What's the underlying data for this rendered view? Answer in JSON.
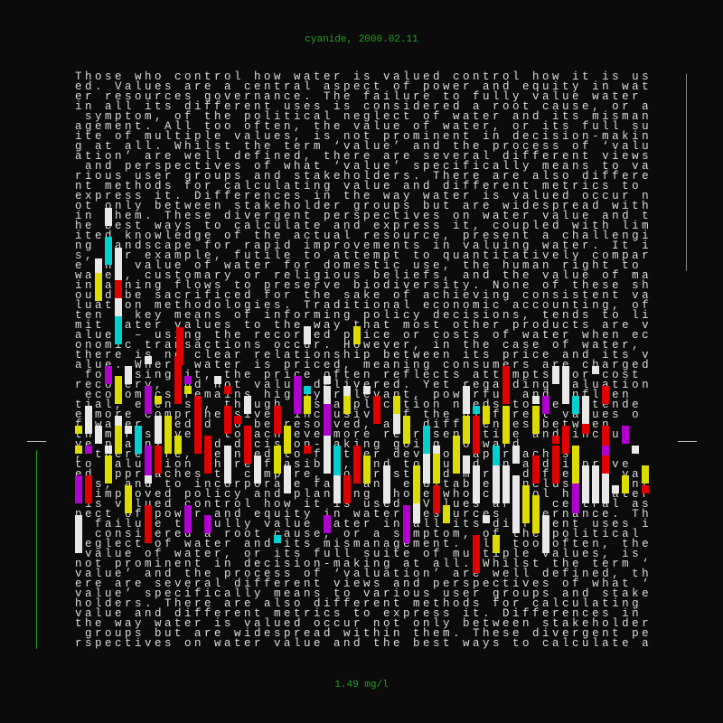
{
  "header": {
    "title": "cyanide, 2000.02.11"
  },
  "footer": {
    "reading": "1.49 mg/l"
  },
  "palette": {
    "text": "#dcdcdc",
    "accent": "#1fa01f",
    "white": "#e8e8e8",
    "yellow": "#dcdc00",
    "red": "#e00000",
    "magenta": "#b000d0",
    "cyan": "#00d0d0"
  },
  "body_lines": [
    "Those who control how water is valued control how it is us",
    "ed. Values are a central aspect of power and equity in wat",
    "er resources governance. The failure to fully value water ",
    "in all its different uses is considered a root cause, or a",
    " symptom, of the political neglect of water and its misman",
    "agement. All too often, the value of water, or its full su",
    "ite of multiple values, is not prominent in decision-makin",
    "g at all. Whilst the term ‘value’ and the process of ‘valu",
    "ation’ are well defined, there are several different views",
    " and perspectives of what ‘value’ specifically means to va",
    "rious user groups and stakeholders. There are also differe",
    "nt methods for calculating value and different metrics to ",
    "express it. Differences in the way water is valued occur n",
    "ot only between stakeholder groups but are widespread with",
    "in them. These divergent perspectives on water value and t",
    "he best ways to calculate and express it, coupled with lim",
    "ited knowledge of the actual resource, present a challengi",
    "ng landscape for rapid improvements in valuing water. It i",
    "s, for example, futile to attempt to quantitatively compar",
    "e the value of water for domestic use, the human right to ",
    "water, customary or religious beliefs, and the value of ma",
    "intaining flows to preserve biodiversity. None of these sh",
    "ould be sacrificed for the sake of achieving consistent va",
    "luation methodologies. Traditional economic accounting, of",
    "ten a key means of informing policy decisions, tends to li",
    "mit water values to the way that most other products are v",
    "alued – using the recorded price or costs of water when ec",
    "onomic transactions occur. However, in the case of water, ",
    "there is no clear relationship between its price and its v",
    "alue. Where water is priced, meaning consumers are charged",
    " for using it, the price often reflects attempts for cost ",
    "recovery, and not value delivered. Yet regarding valuation",
    " economics remains highly relevant, powerful and influen",
    "tial, even so, though its application needs to be extende",
    "e more comprehensive, inclusive of the different values o",
    "f water needed to be resolved, and differences between",
    "them resolved, to achieve more representative and inclus",
    "ve planning and decision-making going forward",
    ", therefore, we need to further develop approaches",
    "to valuation where feasible, and to build on and improve",
    "ed approaches to compare, contrast and merge different val",
    "ues, and to incorporate fair and equitable conclusions int",
    "o improved policy and planning Those who control how water",
    " is valued control how it is used. Values are a central as",
    "pect of power and equity in water resources governance. Th",
    "e failure to fully value water in all its different uses i",
    "s considered a root cause, or a symptom, of the political ",
    "neglect of water and its mismanagement. All too often, the",
    " value of water, or its full suite of multiple values, is ",
    "not prominent in decision-making at all. Whilst the term ‘",
    "value’ and the process of ‘valuation’ are well defined, th",
    "ere are several different views and perspectives of what ‘",
    "value’ specifically means to various user groups and stake",
    "holders. There are also different methods for calculating ",
    "value and different metrics to express it. Differences in ",
    "the way water is valued occur not only between stakeholder",
    " groups but are widespread within them. These divergent pe",
    "rspectives on water value and the best ways to calculate a"
  ]
}
